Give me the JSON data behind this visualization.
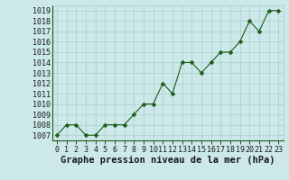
{
  "x": [
    0,
    1,
    2,
    3,
    4,
    5,
    6,
    7,
    8,
    9,
    10,
    11,
    12,
    13,
    14,
    15,
    16,
    17,
    18,
    19,
    20,
    21,
    22,
    23
  ],
  "y": [
    1007,
    1008,
    1008,
    1007,
    1007,
    1008,
    1008,
    1008,
    1009,
    1010,
    1010,
    1012,
    1011,
    1014,
    1014,
    1013,
    1014,
    1015,
    1015,
    1016,
    1018,
    1017,
    1019,
    1019
  ],
  "line_color": "#1a5c1a",
  "marker_color": "#1a5c1a",
  "bg_color": "#cce8e8",
  "grid_color": "#aacece",
  "xlabel": "Graphe pression niveau de la mer (hPa)",
  "xlabel_fontsize": 7.5,
  "ylabel_ticks": [
    1007,
    1008,
    1009,
    1010,
    1011,
    1012,
    1013,
    1014,
    1015,
    1016,
    1017,
    1018,
    1019
  ],
  "xlim": [
    -0.5,
    23.5
  ],
  "ylim": [
    1006.5,
    1019.5
  ],
  "xtick_labels": [
    "0",
    "1",
    "2",
    "3",
    "4",
    "5",
    "6",
    "7",
    "8",
    "9",
    "10",
    "11",
    "12",
    "13",
    "14",
    "15",
    "16",
    "17",
    "18",
    "19",
    "20",
    "21",
    "22",
    "23"
  ],
  "tick_fontsize": 6.0,
  "spine_color": "#1a5c1a"
}
